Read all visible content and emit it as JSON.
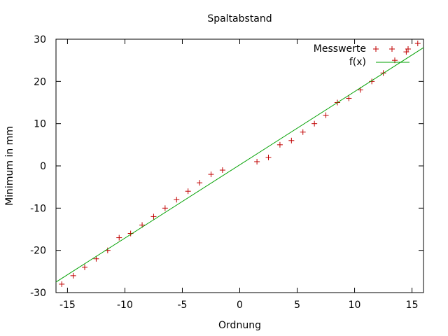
{
  "chart_data": {
    "type": "scatter",
    "title": "Spaltabstand",
    "xlabel": "Ordnung",
    "ylabel": "Minimum in mm",
    "xlim": [
      -16,
      16
    ],
    "ylim": [
      -30,
      30
    ],
    "x_ticks": [
      -15,
      -10,
      -5,
      0,
      5,
      10,
      15
    ],
    "y_ticks": [
      -30,
      -20,
      -10,
      0,
      10,
      20,
      30
    ],
    "x_tick_labels": [
      "-15",
      "-10",
      "-5",
      "0",
      "5",
      "10",
      "15"
    ],
    "y_tick_labels": [
      "-30",
      "-20",
      "-10",
      "0",
      "10",
      "20",
      "30"
    ],
    "grid": false,
    "legend_position": "top-right",
    "series": [
      {
        "name": "Messwerte",
        "kind": "points",
        "marker": "plus",
        "color": "#c00000",
        "x": [
          -15.5,
          -14.5,
          -13.5,
          -12.5,
          -11.5,
          -10.5,
          -9.5,
          -8.5,
          -7.5,
          -6.5,
          -5.5,
          -4.5,
          -3.5,
          -2.5,
          -1.5,
          1.5,
          2.5,
          3.5,
          4.5,
          5.5,
          6.5,
          7.5,
          8.5,
          9.5,
          10.5,
          11.5,
          12.5,
          13.5,
          14.5,
          15.5
        ],
        "y": [
          -28,
          -26,
          -24,
          -22,
          -20,
          -17,
          -16,
          -14,
          -12,
          -10,
          -8,
          -6,
          -4,
          -2,
          -1,
          1,
          2,
          5,
          6,
          8,
          10,
          12,
          15,
          16,
          18,
          20,
          22,
          25,
          27,
          29
        ]
      },
      {
        "name": "f(x)",
        "kind": "line",
        "color": "#00a000",
        "x": [
          -16,
          16
        ],
        "y": [
          -27.5,
          28
        ]
      }
    ]
  }
}
